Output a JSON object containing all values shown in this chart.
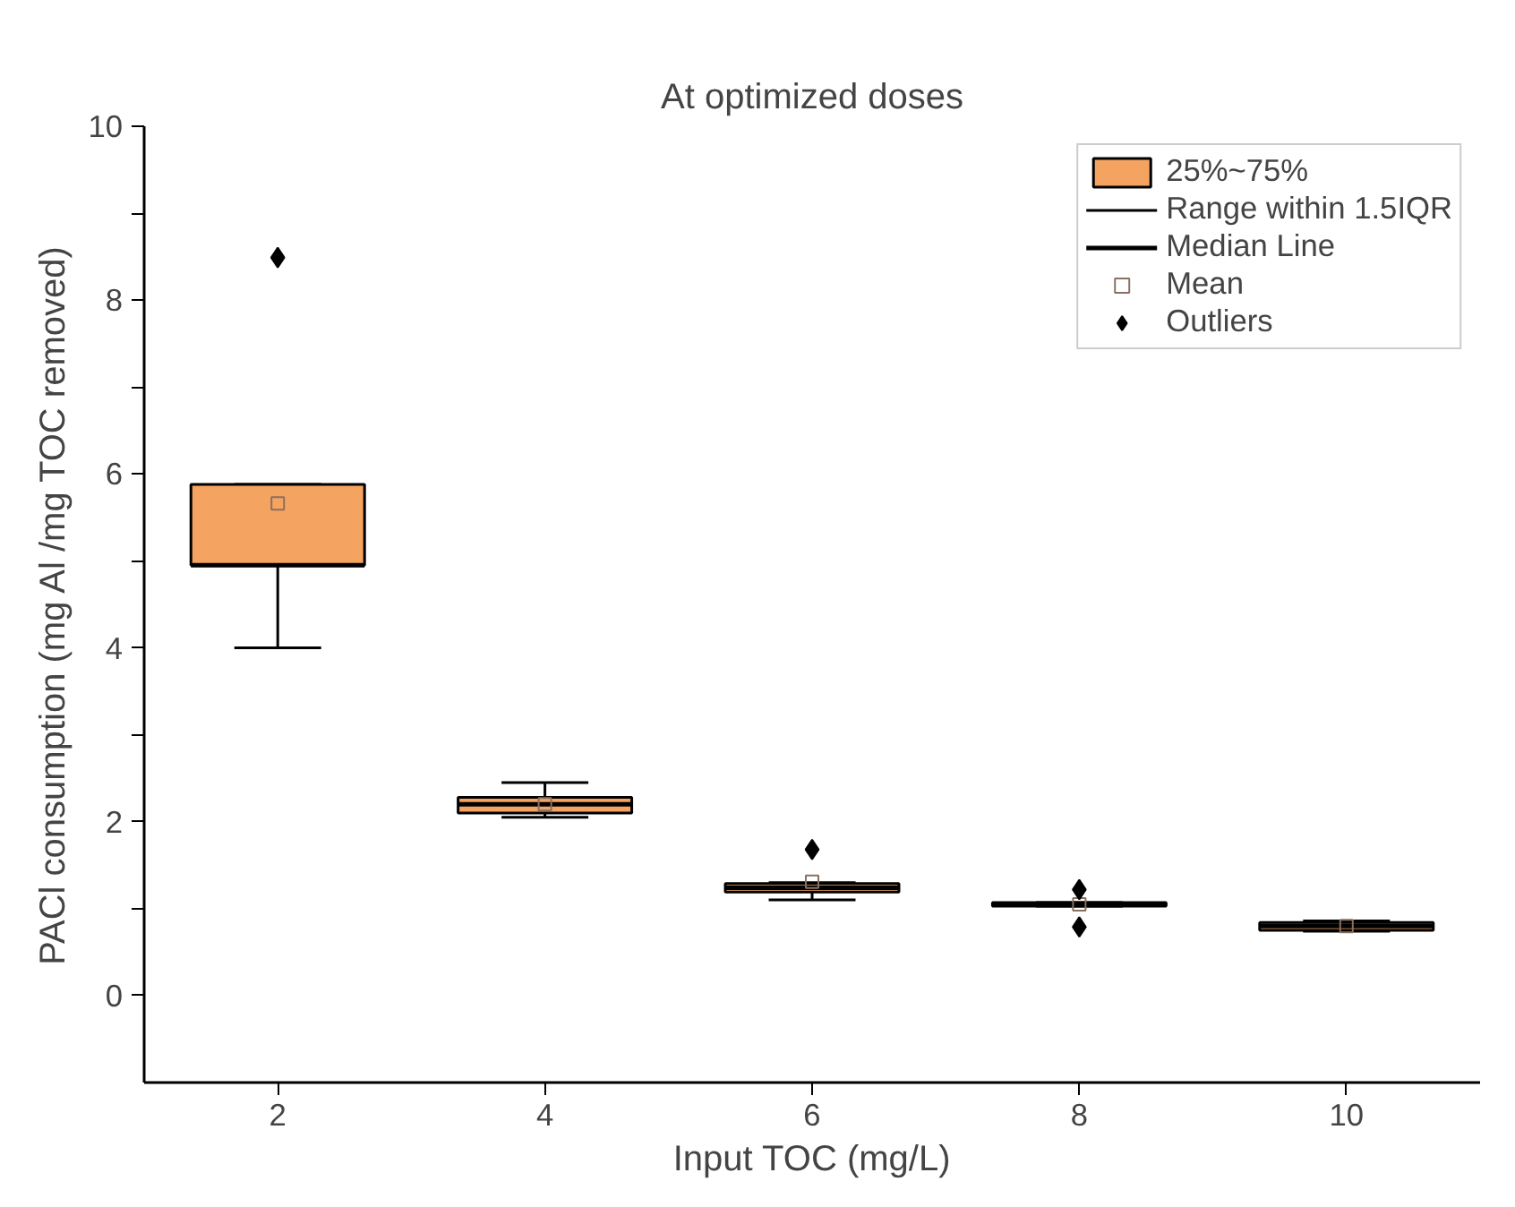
{
  "chart_data": {
    "type": "box",
    "title": "At optimized doses",
    "xlabel": "Input TOC (mg/L)",
    "ylabel": "PACl consumption (mg Al /mg TOC removed)",
    "x": [
      2,
      4,
      6,
      8,
      10
    ],
    "series": [
      {
        "name": "25%~75%",
        "color": "#f4a361",
        "boxes": [
          {
            "low": 4.0,
            "q1": 4.95,
            "median": 4.95,
            "q3": 5.88,
            "high": 5.88
          },
          {
            "low": 2.05,
            "q1": 2.1,
            "median": 2.2,
            "q3": 2.28,
            "high": 2.45
          },
          {
            "low": 1.1,
            "q1": 1.19,
            "median": 1.24,
            "q3": 1.29,
            "high": 1.3
          },
          {
            "low": 1.03,
            "q1": 1.03,
            "median": 1.05,
            "q3": 1.07,
            "high": 1.07
          },
          {
            "low": 0.74,
            "q1": 0.75,
            "median": 0.8,
            "q3": 0.84,
            "high": 0.86
          }
        ]
      },
      {
        "name": "Mean",
        "type": "scatter",
        "marker": "square",
        "color": "#8a7060",
        "x": [
          2,
          4,
          6,
          8,
          10
        ],
        "values": [
          5.66,
          2.2,
          1.31,
          1.05,
          0.8
        ]
      },
      {
        "name": "Outliers",
        "type": "scatter",
        "marker": "diamond",
        "color": "#000000",
        "x": [
          2,
          6,
          8,
          8
        ],
        "values": [
          8.49,
          1.68,
          0.79,
          1.22
        ]
      }
    ],
    "annotations": [
      "Range within 1.5IQR",
      "Median Line"
    ],
    "xlim": [
      1,
      11
    ],
    "ylim": [
      -1,
      10
    ],
    "xticks": [
      2,
      4,
      6,
      8,
      10
    ],
    "yticks": [
      0,
      {
        "value": 1,
        "label": null
      },
      2,
      {
        "value": 3,
        "label": null
      },
      4,
      {
        "value": 5,
        "label": null
      },
      6,
      {
        "value": 7,
        "label": null
      },
      8,
      {
        "value": 9,
        "label": null
      },
      10
    ],
    "grid": false,
    "legend": "top right"
  }
}
